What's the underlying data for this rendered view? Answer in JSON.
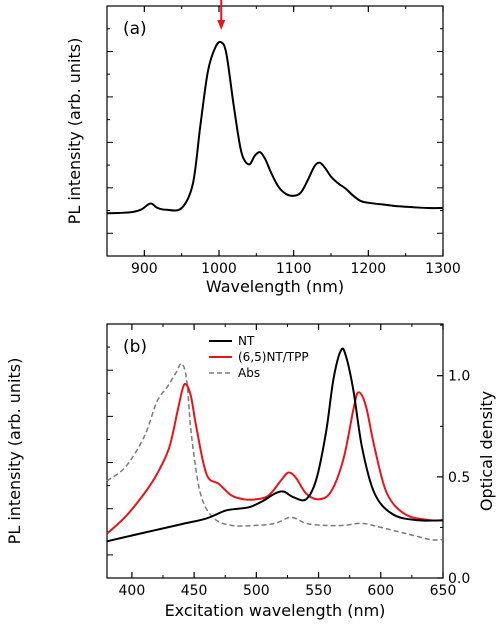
{
  "chart_data": [
    {
      "type": "line",
      "panel_label": "(a)",
      "xlabel": "Wavelength (nm)",
      "ylabel": "PL intensity (arb. units)",
      "xlim": [
        850,
        1300
      ],
      "ylim": [
        0,
        1
      ],
      "x_ticks": [
        900,
        1000,
        1100,
        1200,
        1300
      ],
      "y_tick_labels": "none",
      "grid": false,
      "annotation": {
        "type": "arrow",
        "color": "#e8141b",
        "x": 1003,
        "note": "excitation marker"
      },
      "series": [
        {
          "color": "#000000",
          "x": [
            850,
            880,
            895,
            905,
            910,
            918,
            930,
            950,
            965,
            975,
            985,
            995,
            1003,
            1010,
            1020,
            1030,
            1040,
            1048,
            1055,
            1062,
            1070,
            1080,
            1090,
            1100,
            1110,
            1120,
            1128,
            1135,
            1142,
            1150,
            1160,
            1170,
            1180,
            1190,
            1200,
            1220,
            1240,
            1260,
            1280,
            1300
          ],
          "y": [
            0.05,
            0.055,
            0.07,
            0.1,
            0.105,
            0.08,
            0.07,
            0.08,
            0.22,
            0.55,
            0.86,
            1.0,
            1.03,
            0.96,
            0.66,
            0.4,
            0.33,
            0.38,
            0.4,
            0.36,
            0.28,
            0.2,
            0.16,
            0.15,
            0.17,
            0.25,
            0.32,
            0.34,
            0.31,
            0.26,
            0.22,
            0.19,
            0.15,
            0.12,
            0.11,
            0.1,
            0.09,
            0.085,
            0.08,
            0.08
          ]
        }
      ]
    },
    {
      "type": "line",
      "panel_label": "(b)",
      "xlabel": "Excitation wavelength (nm)",
      "ylabel": "PL intensity (arb. units)",
      "ylabel_right": "Optical density",
      "xlim": [
        380,
        650
      ],
      "ylim": [
        0,
        1
      ],
      "y2lim": [
        0.0,
        1.3
      ],
      "x_ticks": [
        400,
        450,
        500,
        550,
        600,
        650
      ],
      "y2_ticks": [
        0.0,
        0.5,
        1.0
      ],
      "y_tick_labels": "none",
      "grid": false,
      "legend_position": "top-center",
      "series": [
        {
          "name": "NT",
          "color": "#000000",
          "style": "solid",
          "axis": "left",
          "x": [
            380,
            400,
            420,
            440,
            460,
            475,
            485,
            495,
            505,
            515,
            522,
            530,
            540,
            548,
            556,
            562,
            568,
            572,
            578,
            585,
            595,
            610,
            630,
            650
          ],
          "y": [
            0.03,
            0.06,
            0.09,
            0.12,
            0.15,
            0.19,
            0.2,
            0.21,
            0.24,
            0.28,
            0.29,
            0.26,
            0.25,
            0.35,
            0.6,
            0.88,
            1.03,
            1.0,
            0.82,
            0.52,
            0.28,
            0.17,
            0.14,
            0.14
          ]
        },
        {
          "name": "(6,5)NT/TPP",
          "color": "#e8141b",
          "style": "solid",
          "axis": "left",
          "x": [
            380,
            395,
            410,
            420,
            430,
            437,
            442,
            447,
            452,
            460,
            470,
            480,
            490,
            500,
            510,
            520,
            526,
            532,
            540,
            550,
            560,
            570,
            578,
            582,
            588,
            595,
            605,
            620,
            640,
            650
          ],
          "y": [
            0.07,
            0.16,
            0.28,
            0.38,
            0.52,
            0.72,
            0.85,
            0.8,
            0.62,
            0.38,
            0.33,
            0.27,
            0.25,
            0.25,
            0.27,
            0.35,
            0.39,
            0.36,
            0.28,
            0.25,
            0.29,
            0.46,
            0.72,
            0.81,
            0.74,
            0.52,
            0.28,
            0.17,
            0.14,
            0.14
          ]
        },
        {
          "name": "Abs",
          "color": "#7a7a7a",
          "style": "dashed",
          "axis": "right",
          "x": [
            380,
            395,
            410,
            420,
            428,
            432,
            436,
            440,
            444,
            448,
            455,
            465,
            480,
            500,
            515,
            528,
            540,
            555,
            570,
            585,
            600,
            620,
            640,
            650
          ],
          "y": [
            0.48,
            0.55,
            0.7,
            0.87,
            0.94,
            0.98,
            1.02,
            1.06,
            0.98,
            0.7,
            0.42,
            0.3,
            0.26,
            0.26,
            0.27,
            0.3,
            0.27,
            0.26,
            0.26,
            0.27,
            0.25,
            0.22,
            0.19,
            0.19
          ]
        }
      ]
    }
  ]
}
